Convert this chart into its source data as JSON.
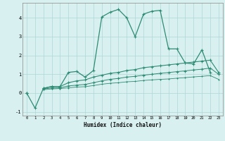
{
  "xlabel": "Humidex (Indice chaleur)",
  "x": [
    0,
    1,
    2,
    3,
    4,
    5,
    6,
    7,
    8,
    9,
    10,
    11,
    12,
    13,
    14,
    15,
    16,
    17,
    18,
    19,
    20,
    21,
    22,
    23
  ],
  "line1": [
    0.0,
    -0.8,
    0.25,
    0.35,
    0.35,
    1.1,
    1.15,
    0.85,
    1.2,
    4.05,
    4.3,
    4.45,
    4.0,
    3.0,
    4.2,
    4.35,
    4.4,
    2.35,
    2.35,
    1.6,
    1.55,
    2.3,
    1.1,
    null
  ],
  "line2": [
    0.0,
    null,
    0.25,
    0.35,
    0.35,
    0.55,
    0.65,
    0.7,
    0.85,
    0.95,
    1.05,
    1.1,
    1.2,
    1.25,
    1.35,
    1.4,
    1.45,
    1.5,
    1.55,
    1.6,
    1.65,
    1.7,
    1.75,
    1.1
  ],
  "line3": [
    0.0,
    null,
    0.22,
    0.27,
    0.28,
    0.38,
    0.42,
    0.46,
    0.55,
    0.65,
    0.73,
    0.78,
    0.85,
    0.89,
    0.95,
    1.0,
    1.05,
    1.09,
    1.14,
    1.18,
    1.23,
    1.27,
    1.33,
    1.0
  ],
  "line4": [
    0.0,
    null,
    0.18,
    0.22,
    0.24,
    0.28,
    0.32,
    0.34,
    0.4,
    0.47,
    0.52,
    0.55,
    0.6,
    0.62,
    0.67,
    0.7,
    0.73,
    0.75,
    0.79,
    0.82,
    0.86,
    0.89,
    0.93,
    0.73
  ],
  "line_color": "#2e8b74",
  "bg_color": "#d8f0f0",
  "grid_color": "#aed6d6",
  "ylim": [
    -1.2,
    4.8
  ],
  "xlim": [
    -0.5,
    23.5
  ],
  "yticks": [
    -1,
    0,
    1,
    2,
    3,
    4
  ],
  "xticks": [
    0,
    1,
    2,
    3,
    4,
    5,
    6,
    7,
    8,
    9,
    10,
    11,
    12,
    13,
    14,
    15,
    16,
    17,
    18,
    19,
    20,
    21,
    22,
    23
  ]
}
